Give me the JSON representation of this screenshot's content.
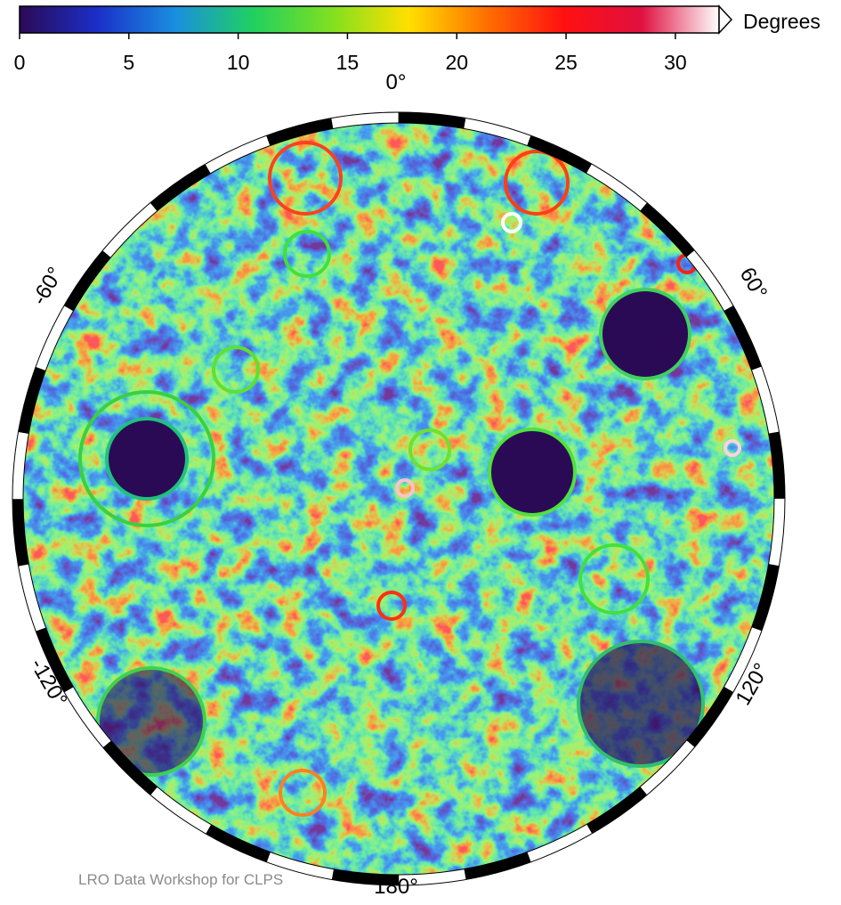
{
  "colorbar": {
    "label": "Degrees",
    "lim": [
      0,
      32
    ],
    "ticks": [
      0,
      5,
      10,
      15,
      20,
      25,
      30
    ],
    "colors": [
      "#2b0a55",
      "#1a2fc8",
      "#1a8ee0",
      "#20d060",
      "#7ee020",
      "#ffe000",
      "#ff7000",
      "#ff1010",
      "#e01040",
      "#ffffff"
    ]
  },
  "map": {
    "labels": {
      "top": "0°",
      "upper_right": "60°",
      "lower_right": "120°",
      "bottom": "180°",
      "lower_left": "-120°",
      "upper_left": "-60°"
    }
  },
  "footer": "LRO Data Workshop for CLPS"
}
